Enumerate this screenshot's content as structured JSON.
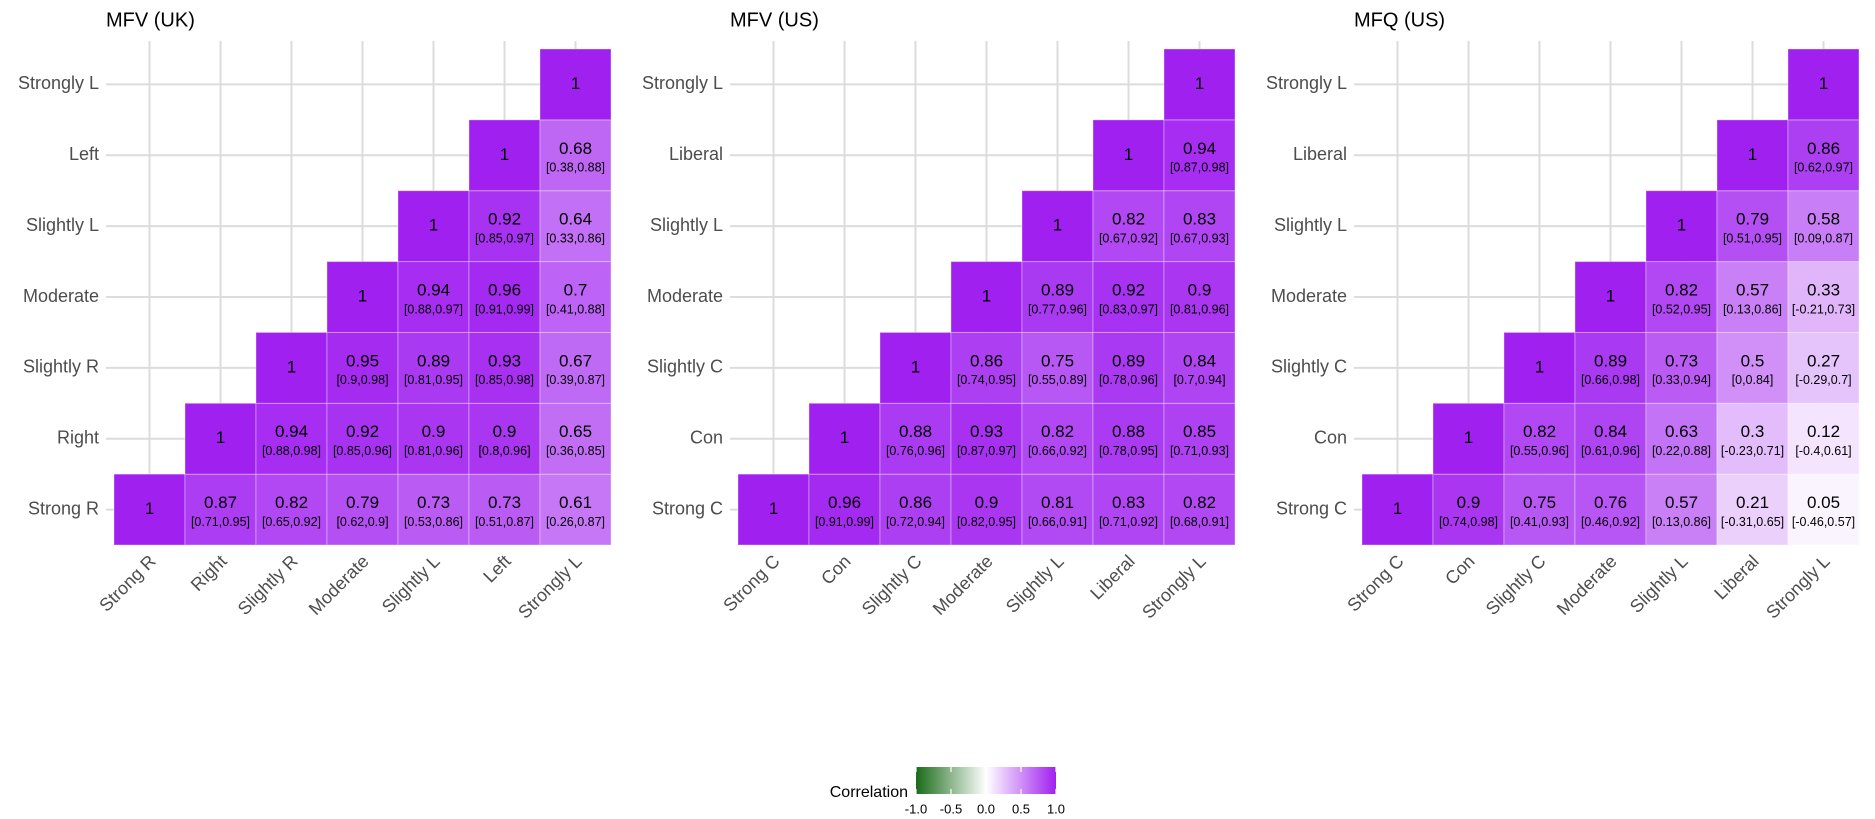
{
  "chart_data": [
    {
      "type": "heatmap",
      "title": "MFV (UK)",
      "grid": true,
      "categories": [
        "Strong R",
        "Right",
        "Slightly R",
        "Moderate",
        "Slightly L",
        "Left",
        "Strongly L"
      ],
      "values": [
        [
          1,
          0.87,
          0.82,
          0.79,
          0.73,
          0.73,
          0.61
        ],
        [
          null,
          1,
          0.94,
          0.92,
          0.9,
          0.9,
          0.65
        ],
        [
          null,
          null,
          1,
          0.95,
          0.89,
          0.93,
          0.67
        ],
        [
          null,
          null,
          null,
          1,
          0.94,
          0.96,
          0.7
        ],
        [
          null,
          null,
          null,
          null,
          1,
          0.92,
          0.64
        ],
        [
          null,
          null,
          null,
          null,
          null,
          1,
          0.68
        ],
        [
          null,
          null,
          null,
          null,
          null,
          null,
          1
        ]
      ],
      "ci_labels": [
        [
          null,
          "[0.71,0.95]",
          "[0.65,0.92]",
          "[0.62,0.9]",
          "[0.53,0.86]",
          "[0.51,0.87]",
          "[0.26,0.87]"
        ],
        [
          null,
          null,
          "[0.88,0.98]",
          "[0.85,0.96]",
          "[0.81,0.96]",
          "[0.8,0.96]",
          "[0.36,0.85]"
        ],
        [
          null,
          null,
          null,
          "[0.9,0.98]",
          "[0.81,0.95]",
          "[0.85,0.98]",
          "[0.39,0.87]"
        ],
        [
          null,
          null,
          null,
          null,
          "[0.88,0.97]",
          "[0.91,0.99]",
          "[0.41,0.88]"
        ],
        [
          null,
          null,
          null,
          null,
          null,
          "[0.85,0.97]",
          "[0.33,0.86]"
        ],
        [
          null,
          null,
          null,
          null,
          null,
          null,
          "[0.38,0.88]"
        ],
        [
          null,
          null,
          null,
          null,
          null,
          null,
          null
        ]
      ]
    },
    {
      "type": "heatmap",
      "title": "MFV (US)",
      "grid": true,
      "categories": [
        "Strong C",
        "Con",
        "Slightly C",
        "Moderate",
        "Slightly L",
        "Liberal",
        "Strongly L"
      ],
      "values": [
        [
          1,
          0.96,
          0.86,
          0.9,
          0.81,
          0.83,
          0.82
        ],
        [
          null,
          1,
          0.88,
          0.93,
          0.82,
          0.88,
          0.85
        ],
        [
          null,
          null,
          1,
          0.86,
          0.75,
          0.89,
          0.84
        ],
        [
          null,
          null,
          null,
          1,
          0.89,
          0.92,
          0.9
        ],
        [
          null,
          null,
          null,
          null,
          1,
          0.82,
          0.83
        ],
        [
          null,
          null,
          null,
          null,
          null,
          1,
          0.94
        ],
        [
          null,
          null,
          null,
          null,
          null,
          null,
          1
        ]
      ],
      "ci_labels": [
        [
          null,
          "[0.91,0.99]",
          "[0.72,0.94]",
          "[0.82,0.95]",
          "[0.66,0.91]",
          "[0.71,0.92]",
          "[0.68,0.91]"
        ],
        [
          null,
          null,
          "[0.76,0.96]",
          "[0.87,0.97]",
          "[0.66,0.92]",
          "[0.78,0.95]",
          "[0.71,0.93]"
        ],
        [
          null,
          null,
          null,
          "[0.74,0.95]",
          "[0.55,0.89]",
          "[0.78,0.96]",
          "[0.7,0.94]"
        ],
        [
          null,
          null,
          null,
          null,
          "[0.77,0.96]",
          "[0.83,0.97]",
          "[0.81,0.96]"
        ],
        [
          null,
          null,
          null,
          null,
          null,
          "[0.67,0.92]",
          "[0.67,0.93]"
        ],
        [
          null,
          null,
          null,
          null,
          null,
          null,
          "[0.87,0.98]"
        ],
        [
          null,
          null,
          null,
          null,
          null,
          null,
          null
        ]
      ]
    },
    {
      "type": "heatmap",
      "title": "MFQ (US)",
      "grid": true,
      "categories": [
        "Strong C",
        "Con",
        "Slightly C",
        "Moderate",
        "Slightly L",
        "Liberal",
        "Strongly L"
      ],
      "values": [
        [
          1,
          0.9,
          0.75,
          0.76,
          0.57,
          0.21,
          0.05
        ],
        [
          null,
          1,
          0.82,
          0.84,
          0.63,
          0.3,
          0.12
        ],
        [
          null,
          null,
          1,
          0.89,
          0.73,
          0.5,
          0.27
        ],
        [
          null,
          null,
          null,
          1,
          0.82,
          0.57,
          0.33
        ],
        [
          null,
          null,
          null,
          null,
          1,
          0.79,
          0.58
        ],
        [
          null,
          null,
          null,
          null,
          null,
          1,
          0.86
        ],
        [
          null,
          null,
          null,
          null,
          null,
          null,
          1
        ]
      ],
      "ci_labels": [
        [
          null,
          "[0.74,0.98]",
          "[0.41,0.93]",
          "[0.46,0.92]",
          "[0.13,0.86]",
          "[-0.31,0.65]",
          "[-0.46,0.57]"
        ],
        [
          null,
          null,
          "[0.55,0.96]",
          "[0.61,0.96]",
          "[0.22,0.88]",
          "[-0.23,0.71]",
          "[-0.4,0.61]"
        ],
        [
          null,
          null,
          null,
          "[0.66,0.98]",
          "[0.33,0.94]",
          "[0,0.84]",
          "[-0.29,0.7]"
        ],
        [
          null,
          null,
          null,
          null,
          "[0.52,0.95]",
          "[0.13,0.86]",
          "[-0.21,0.73]"
        ],
        [
          null,
          null,
          null,
          null,
          null,
          "[0.51,0.95]",
          "[0.09,0.87]"
        ],
        [
          null,
          null,
          null,
          null,
          null,
          null,
          "[0.62,0.97]"
        ],
        [
          null,
          null,
          null,
          null,
          null,
          null,
          null
        ]
      ]
    }
  ],
  "colorbar": {
    "title": "Correlation",
    "lim": [
      -1,
      1
    ],
    "colors": [
      "#1a6b1a",
      "#ffffff",
      "#a020f0"
    ],
    "ticks": [
      {
        "value": -1,
        "label": "-1.0"
      },
      {
        "value": -0.5,
        "label": "-0.5"
      },
      {
        "value": 0,
        "label": "0.0"
      },
      {
        "value": 0.5,
        "label": "0.5"
      },
      {
        "value": 1,
        "label": "1.0"
      }
    ]
  }
}
